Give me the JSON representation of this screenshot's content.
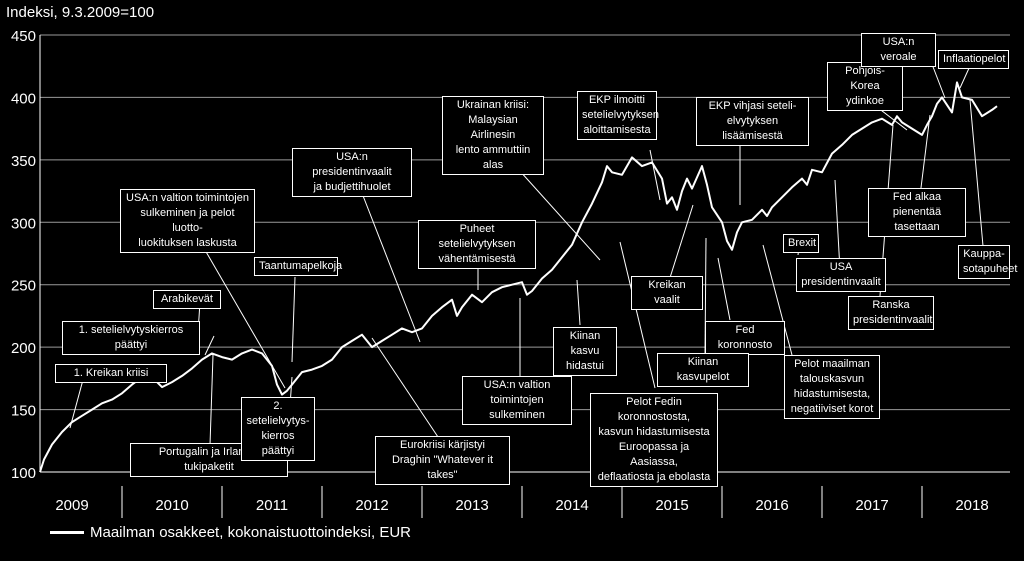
{
  "chart_data": {
    "type": "line",
    "title": "",
    "ylabel": "Indeksi, 9.3.2009=100",
    "xlabel": "",
    "ylim": [
      100,
      450
    ],
    "yticks": [
      100,
      150,
      200,
      250,
      300,
      350,
      400,
      450
    ],
    "xlim": [
      2009.18,
      2018.88
    ],
    "grid": true,
    "legend": "bottom-left",
    "line_color": "#ffffff",
    "background": "#000000",
    "x_tick_labels": [
      {
        "label": "2009",
        "x": 2009.5
      },
      {
        "label": "2010",
        "x": 2010.5
      },
      {
        "label": "2011",
        "x": 2011.5
      },
      {
        "label": "2012",
        "x": 2012.5
      },
      {
        "label": "2013",
        "x": 2013.5
      },
      {
        "label": "2014",
        "x": 2014.5
      },
      {
        "label": "2015",
        "x": 2015.5
      },
      {
        "label": "2016",
        "x": 2016.5
      },
      {
        "label": "2017",
        "x": 2017.5
      },
      {
        "label": "2018",
        "x": 2018.5
      }
    ],
    "x_separators": [
      2010,
      2011,
      2012,
      2013,
      2014,
      2015,
      2016,
      2017,
      2018
    ],
    "series": [
      {
        "name": "Maailman osakkeet, kokonaistuottoindeksi, EUR",
        "x": [
          2009.18,
          2009.22,
          2009.3,
          2009.4,
          2009.5,
          2009.6,
          2009.7,
          2009.8,
          2009.9,
          2010.0,
          2010.1,
          2010.2,
          2010.3,
          2010.35,
          2010.4,
          2010.5,
          2010.6,
          2010.7,
          2010.8,
          2010.9,
          2011.0,
          2011.1,
          2011.2,
          2011.3,
          2011.4,
          2011.5,
          2011.55,
          2011.6,
          2011.65,
          2011.7,
          2011.8,
          2011.9,
          2012.0,
          2012.1,
          2012.2,
          2012.3,
          2012.4,
          2012.45,
          2012.5,
          2012.6,
          2012.7,
          2012.8,
          2012.9,
          2013.0,
          2013.1,
          2013.2,
          2013.3,
          2013.35,
          2013.4,
          2013.5,
          2013.6,
          2013.7,
          2013.8,
          2013.9,
          2014.0,
          2014.05,
          2014.1,
          2014.2,
          2014.3,
          2014.4,
          2014.5,
          2014.6,
          2014.7,
          2014.8,
          2014.85,
          2014.9,
          2015.0,
          2015.1,
          2015.2,
          2015.3,
          2015.4,
          2015.45,
          2015.5,
          2015.55,
          2015.6,
          2015.65,
          2015.7,
          2015.8,
          2015.85,
          2015.9,
          2016.0,
          2016.05,
          2016.1,
          2016.15,
          2016.2,
          2016.3,
          2016.4,
          2016.45,
          2016.5,
          2016.6,
          2016.7,
          2016.8,
          2016.85,
          2016.9,
          2017.0,
          2017.1,
          2017.2,
          2017.3,
          2017.4,
          2017.5,
          2017.6,
          2017.7,
          2017.75,
          2017.8,
          2017.9,
          2018.0,
          2018.05,
          2018.1,
          2018.15,
          2018.2,
          2018.3,
          2018.35,
          2018.4,
          2018.5,
          2018.6,
          2018.7,
          2018.75
        ],
        "values": [
          100,
          110,
          122,
          132,
          140,
          145,
          150,
          155,
          158,
          163,
          170,
          176,
          175,
          172,
          168,
          172,
          177,
          183,
          190,
          195,
          192,
          190,
          195,
          198,
          195,
          185,
          170,
          162,
          165,
          170,
          180,
          182,
          185,
          190,
          200,
          205,
          210,
          205,
          200,
          205,
          210,
          215,
          212,
          215,
          225,
          232,
          238,
          225,
          232,
          242,
          236,
          244,
          248,
          250,
          252,
          242,
          245,
          255,
          262,
          272,
          282,
          300,
          315,
          332,
          345,
          340,
          338,
          352,
          345,
          348,
          335,
          315,
          320,
          310,
          325,
          335,
          327,
          345,
          330,
          312,
          300,
          285,
          278,
          292,
          300,
          302,
          310,
          305,
          312,
          320,
          328,
          335,
          330,
          342,
          340,
          355,
          362,
          370,
          375,
          380,
          383,
          378,
          385,
          380,
          375,
          370,
          378,
          385,
          395,
          400,
          388,
          412,
          400,
          398,
          385,
          390,
          393
        ]
      }
    ],
    "annotations": [
      {
        "text": "1. Kreikan kriisi"
      },
      {
        "text": "1. setelielvytyskierros päättyi"
      },
      {
        "text": "Arabikevät"
      },
      {
        "text": "Portugalin ja Irlannin tukipaketit"
      },
      {
        "text": "USA:n valtion toimintojen\nsulkeminen ja pelot luotto-\nluokituksen laskusta"
      },
      {
        "text": "Taantumapelkoja"
      },
      {
        "text": "2. setelielvytys-\nkierros päättyi"
      },
      {
        "text": "USA:n presidentinvaalit\nja budjettihuolet"
      },
      {
        "text": "Eurokriisi kärjistyi\nDraghin \"Whatever it takes\""
      },
      {
        "text": "Puheet setelielvytyksen\nvähentämisestä"
      },
      {
        "text": "USA:n valtion\ntoimintojen sulkeminen"
      },
      {
        "text": "Ukrainan kriisi:\nMalaysian Airlinesin\nlento ammuttiin alas"
      },
      {
        "text": "Kiinan kasvu\nhidastui"
      },
      {
        "text": "EKP ilmoitti\nsetelielvytyksen\naloittamisesta"
      },
      {
        "text": "Pelot Fedin koronnostosta,\nkasvun hidastumisesta\nEuroopassa ja Aasiassa,\ndeflaatiosta ja ebolasta"
      },
      {
        "text": "Kreikan vaalit"
      },
      {
        "text": "EKP vihjasi seteli-\nelvytyksen lisäämisestä"
      },
      {
        "text": "Fed koronnosto"
      },
      {
        "text": "Kiinan kasvupelot"
      },
      {
        "text": "Pelot maailman\ntalouskasvun\nhidastumisesta,\nnegatiiviset korot"
      },
      {
        "text": "Brexit"
      },
      {
        "text": "USA\npresidentinvaalit"
      },
      {
        "text": "Ranska\npresidentinvaalit"
      },
      {
        "text": "Pohjois-Korea\nydinkoe"
      },
      {
        "text": "USA:n veroale"
      },
      {
        "text": "Inflaatiopelot"
      },
      {
        "text": "Fed alkaa\npienentää tasettaan"
      },
      {
        "text": "Kauppa-\nsotapuheet"
      }
    ]
  }
}
